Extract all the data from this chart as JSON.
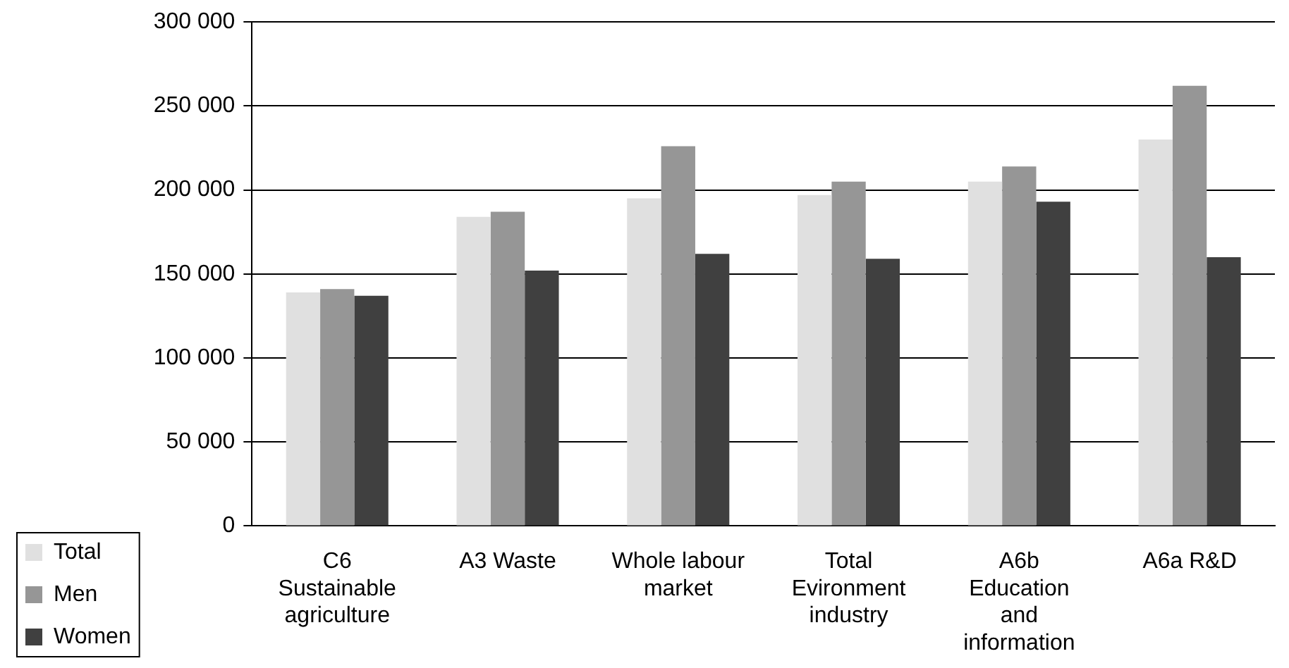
{
  "chart_data": {
    "type": "bar",
    "categories": [
      "C6 Sustainable agriculture",
      "A3 Waste",
      "Whole labour market",
      "Total Evironment industry",
      "A6b Education and information",
      "A6a R&D"
    ],
    "series": [
      {
        "name": "Total",
        "color": "#e0e0e0",
        "values": [
          139000,
          184000,
          195000,
          197000,
          205000,
          230000
        ]
      },
      {
        "name": "Men",
        "color": "#969696",
        "values": [
          141000,
          187000,
          226000,
          205000,
          214000,
          262000
        ]
      },
      {
        "name": "Women",
        "color": "#404040",
        "values": [
          137000,
          152000,
          162000,
          159000,
          193000,
          160000
        ]
      }
    ],
    "ylim": [
      0,
      300000
    ],
    "yticks": [
      {
        "value": 0,
        "label": "0"
      },
      {
        "value": 50000,
        "label": "50 000"
      },
      {
        "value": 100000,
        "label": "100 000"
      },
      {
        "value": 150000,
        "label": "150 000"
      },
      {
        "value": 200000,
        "label": "200 000"
      },
      {
        "value": 250000,
        "label": "250 000"
      },
      {
        "value": 300000,
        "label": "300 000"
      }
    ],
    "grid": "y",
    "legend": "bottom left"
  }
}
